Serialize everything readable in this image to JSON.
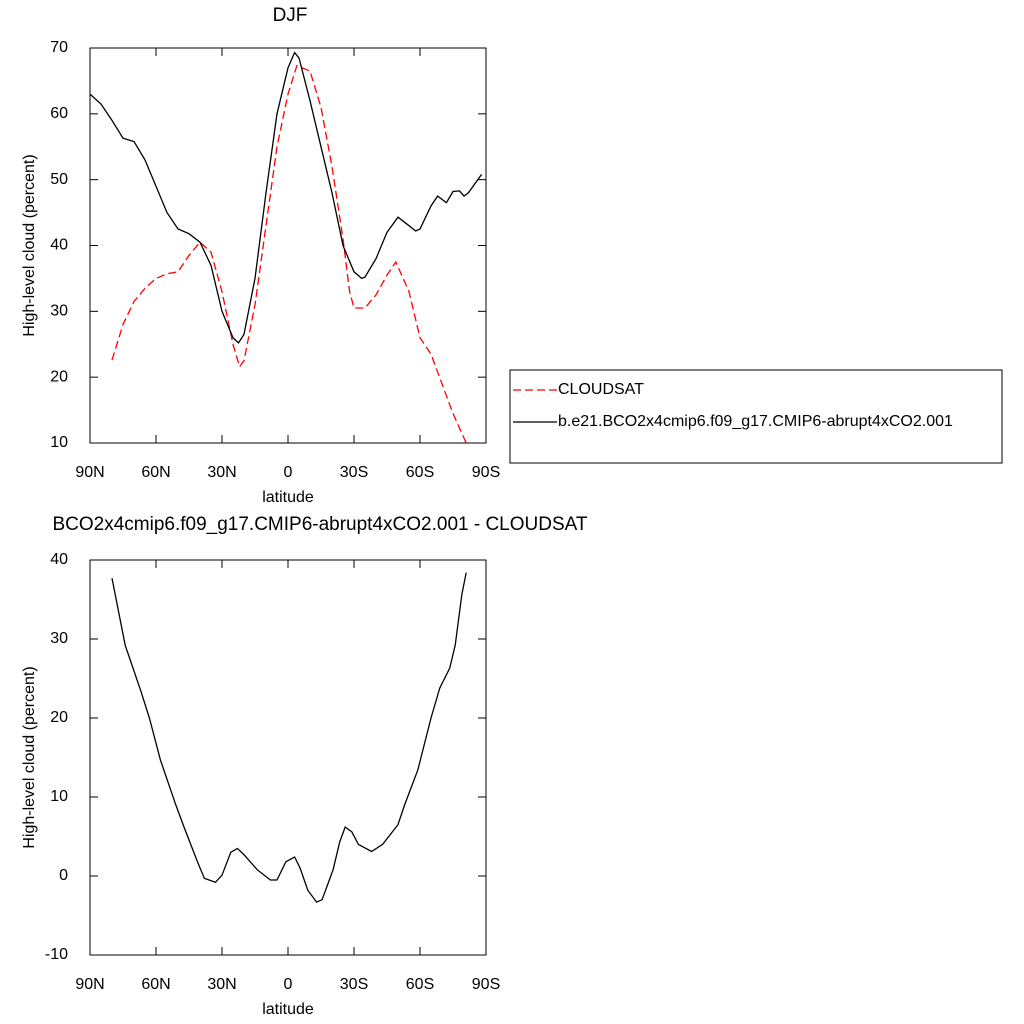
{
  "chart_data": [
    {
      "type": "line",
      "title": "DJF",
      "xlabel": "latitude",
      "ylabel": "High-level cloud (percent)",
      "xlim": [
        90,
        -90
      ],
      "ylim": [
        10,
        70
      ],
      "xticks": [
        {
          "value": 90,
          "label": "90N"
        },
        {
          "value": 60,
          "label": "60N"
        },
        {
          "value": 30,
          "label": "30N"
        },
        0,
        {
          "value": -30,
          "label": "30S"
        },
        {
          "value": -60,
          "label": "60S"
        },
        {
          "value": -90,
          "label": "90S"
        }
      ],
      "yticks": [
        10,
        20,
        30,
        40,
        50,
        60,
        70
      ],
      "legend": "right",
      "series": [
        {
          "name": "CLOUDSAT",
          "color": "#ff0000",
          "style": "dashed",
          "x": [
            80,
            75,
            70,
            65,
            60,
            55,
            50,
            45,
            40,
            35,
            30,
            25,
            22,
            20,
            15,
            10,
            5,
            0,
            -4,
            -10,
            -15,
            -20,
            -25,
            -28,
            -30,
            -35,
            -40,
            -45,
            -49,
            -55,
            -60,
            -65,
            -70,
            -75,
            -81
          ],
          "values": [
            22.6,
            28,
            31.5,
            33.5,
            35,
            35.7,
            36,
            38.5,
            40.5,
            39,
            33,
            25,
            21.6,
            22.5,
            31,
            43,
            55,
            63,
            67.3,
            66.5,
            61,
            52,
            41,
            33,
            30.5,
            30.5,
            32.5,
            35.5,
            37.5,
            33,
            26,
            23.5,
            19,
            14.5,
            10
          ]
        },
        {
          "name": "b.e21.BCO2x4cmip6.f09_g17.CMIP6-abrupt4xCO2.001",
          "color": "#000000",
          "style": "solid",
          "x": [
            90,
            85,
            80,
            75,
            70,
            65,
            60,
            55,
            50,
            45,
            40,
            35,
            30,
            25,
            22.5,
            20,
            15,
            10,
            5,
            0,
            -3,
            -5,
            -10,
            -15,
            -20,
            -25,
            -30,
            -33.5,
            -35,
            -40,
            -45,
            -50,
            -55,
            -58,
            -60,
            -65,
            -68,
            -72,
            -75,
            -78,
            -80,
            -82,
            -88
          ],
          "values": [
            63,
            61.5,
            59,
            56.3,
            55.8,
            53,
            49,
            45,
            42.5,
            41.8,
            40.5,
            37,
            30,
            26,
            25.2,
            26.5,
            35,
            48,
            60,
            67,
            69.3,
            68.5,
            62,
            55,
            48,
            40,
            36,
            35,
            35.2,
            38,
            42,
            44.3,
            43,
            42.2,
            42.5,
            46,
            47.5,
            46.5,
            48.2,
            48.3,
            47.5,
            48,
            50.8
          ]
        }
      ]
    },
    {
      "type": "line",
      "title": "BCO2x4cmip6.f09_g17.CMIP6-abrupt4xCO2.001 - CLOUDSAT",
      "xlabel": "latitude",
      "ylabel": "High-level cloud (percent)",
      "xlim": [
        90,
        -90
      ],
      "ylim": [
        -10,
        40
      ],
      "xticks": [
        {
          "value": 90,
          "label": "90N"
        },
        {
          "value": 60,
          "label": "60N"
        },
        {
          "value": 30,
          "label": "30N"
        },
        0,
        {
          "value": -30,
          "label": "30S"
        },
        {
          "value": -60,
          "label": "60S"
        },
        {
          "value": -90,
          "label": "90S"
        }
      ],
      "yticks": [
        -10,
        0,
        10,
        20,
        30,
        40
      ],
      "series": [
        {
          "color": "#000000",
          "style": "solid",
          "x": [
            80,
            74,
            67,
            63,
            58,
            51,
            47,
            41,
            38,
            33,
            30,
            26,
            23,
            20,
            14,
            8,
            5,
            1,
            -3,
            -5.5,
            -9,
            -13,
            -15.5,
            -20.5,
            -23.5,
            -26,
            -29,
            -32,
            -38,
            -43,
            -50,
            -53,
            -59,
            -65,
            -69,
            -73.5,
            -76,
            -79,
            -81
          ],
          "values": [
            37.7,
            29.2,
            23.5,
            20,
            14.7,
            9,
            6,
            1.7,
            -0.3,
            -0.8,
            0.1,
            3,
            3.5,
            2.7,
            0.8,
            -0.5,
            -0.5,
            1.8,
            2.4,
            1,
            -1.8,
            -3.3,
            -3,
            0.8,
            4.3,
            6.2,
            5.6,
            4,
            3.1,
            4,
            6.5,
            9,
            13.4,
            20,
            23.8,
            26.3,
            29.2,
            35.6,
            38.4
          ]
        }
      ]
    }
  ]
}
